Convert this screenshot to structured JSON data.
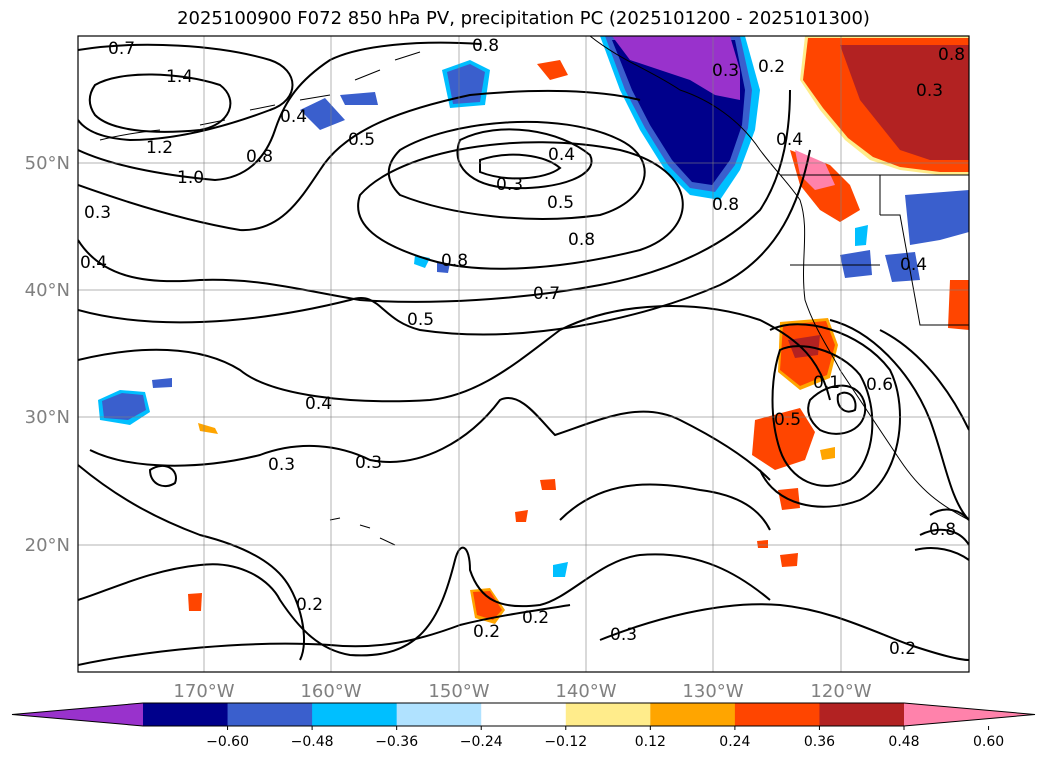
{
  "title": "2025100900 F072 850 hPa PV, precipitation PC (2025101200 - 2025101300)",
  "axes": {
    "lat_ticks": [
      "50°N",
      "40°N",
      "30°N",
      "20°N"
    ],
    "lon_ticks": [
      "170°W",
      "160°W",
      "150°W",
      "140°W",
      "130°W",
      "120°W"
    ]
  },
  "contour_labels": [
    "0.7",
    "1.4",
    "1.2",
    "1.0",
    "0.8",
    "0.4",
    "0.5",
    "0.8",
    "0.4",
    "0.3",
    "0.5",
    "0.8",
    "0.8",
    "0.7",
    "0.5",
    "0.3",
    "0.4",
    "0.4",
    "0.3",
    "0.3",
    "0.2",
    "0.2",
    "0.2",
    "0.3",
    "0.2",
    "0.5",
    "0.1",
    "0.6",
    "0.8",
    "0.3",
    "0.4",
    "0.2",
    "0.8",
    "0.8",
    "0.4",
    "0.3"
  ],
  "colorbar": {
    "labels": [
      "−0.60",
      "−0.48",
      "−0.36",
      "−0.24",
      "−0.12",
      "0.12",
      "0.24",
      "0.36",
      "0.48",
      "0.60"
    ],
    "colors": [
      "#9932cc",
      "#00008b",
      "#3a5fcd",
      "#00bfff",
      "#b0e2ff",
      "#ffffff",
      "#ffec8b",
      "#ffa500",
      "#ff4500",
      "#b22222",
      "#ff82ab"
    ]
  }
}
